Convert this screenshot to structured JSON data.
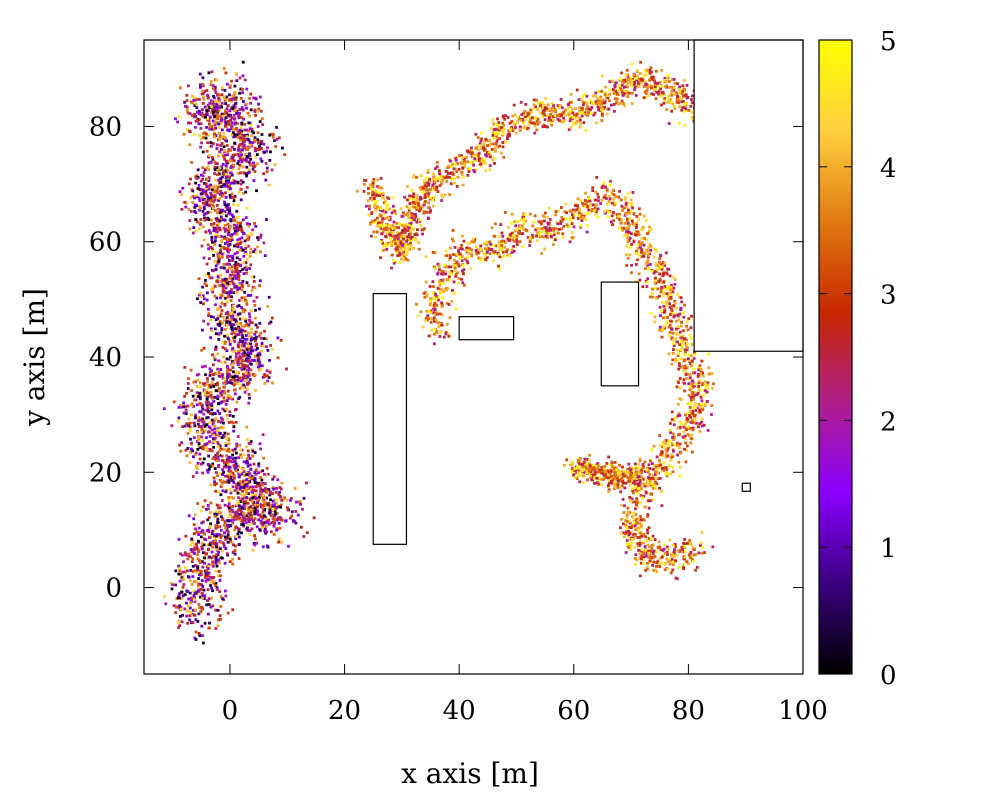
{
  "chart_data": {
    "type": "scatter",
    "title": "",
    "xlabel": "x axis [m]",
    "ylabel": "y axis [m]",
    "xlim": [
      -15,
      100
    ],
    "ylim": [
      -15,
      95
    ],
    "xticks": [
      0,
      20,
      40,
      60,
      80,
      100
    ],
    "yticks": [
      0,
      20,
      40,
      60,
      80
    ],
    "colorbar": {
      "min": 0,
      "max": 5,
      "ticks": [
        0,
        1,
        2,
        3,
        4,
        5
      ],
      "palette": [
        "#000000",
        "#3a0080",
        "#8a00ff",
        "#b0208a",
        "#c82800",
        "#e07a10",
        "#ffd040",
        "#ffff00"
      ]
    },
    "obstacles": [
      {
        "name": "obstacle-1",
        "x0": 25,
        "x1": 30.8,
        "y0": 7.5,
        "y1": 51
      },
      {
        "name": "obstacle-2",
        "x0": 40,
        "x1": 49.5,
        "y0": 43,
        "y1": 47
      },
      {
        "name": "obstacle-3",
        "x0": 64.8,
        "x1": 71.3,
        "y0": 35,
        "y1": 53
      },
      {
        "name": "obstacle-4",
        "x0": 81,
        "x1": 100,
        "y0": 41,
        "y1": 95
      },
      {
        "name": "obstacle-5",
        "x0": 89.4,
        "x1": 90.8,
        "y0": 16.7,
        "y1": 18.1
      }
    ],
    "clusters": [
      {
        "name": "left-column",
        "value_range": [
          0,
          4.5
        ],
        "count": 3200,
        "path": [
          [
            -6,
            -5
          ],
          [
            -5,
            5
          ],
          [
            -2,
            10
          ],
          [
            3,
            14
          ],
          [
            8,
            12
          ],
          [
            2,
            20
          ],
          [
            -3,
            24
          ],
          [
            -5,
            30
          ],
          [
            -1,
            36
          ],
          [
            4,
            40
          ],
          [
            0,
            47
          ],
          [
            0,
            55
          ],
          [
            1,
            62
          ],
          [
            -4,
            66
          ],
          [
            -1,
            72
          ],
          [
            4,
            76
          ],
          [
            0,
            80
          ],
          [
            -5,
            82
          ],
          [
            2,
            86
          ]
        ],
        "spread": 4.2
      },
      {
        "name": "top-band",
        "value_range": [
          2,
          5
        ],
        "count": 1300,
        "path": [
          [
            25,
            70
          ],
          [
            27,
            63
          ],
          [
            30,
            58
          ],
          [
            33,
            68
          ],
          [
            38,
            72
          ],
          [
            44,
            75
          ],
          [
            48,
            80
          ],
          [
            53,
            82
          ],
          [
            60,
            82
          ],
          [
            65,
            84
          ],
          [
            68,
            87
          ],
          [
            73,
            88
          ],
          [
            77,
            86
          ],
          [
            81,
            82
          ]
        ],
        "spread": 2.2
      },
      {
        "name": "middle-band",
        "value_range": [
          2,
          5
        ],
        "count": 1700,
        "path": [
          [
            36,
            44
          ],
          [
            36,
            50
          ],
          [
            38,
            55
          ],
          [
            42,
            60
          ],
          [
            47,
            58
          ],
          [
            50,
            62
          ],
          [
            56,
            62
          ],
          [
            61,
            65
          ],
          [
            66,
            68
          ],
          [
            70,
            64
          ],
          [
            72,
            58
          ],
          [
            76,
            52
          ],
          [
            78,
            45
          ],
          [
            80,
            38
          ],
          [
            82,
            34
          ],
          [
            80,
            28
          ],
          [
            77,
            24
          ],
          [
            74,
            20
          ],
          [
            71,
            15
          ],
          [
            70,
            10
          ],
          [
            73,
            5
          ],
          [
            78,
            5
          ],
          [
            82,
            7
          ]
        ],
        "spread": 2.4
      },
      {
        "name": "lower-spur",
        "value_range": [
          2,
          5
        ],
        "count": 350,
        "path": [
          [
            60,
            21
          ],
          [
            64,
            20
          ],
          [
            68,
            19
          ],
          [
            72,
            20
          ]
        ],
        "spread": 1.8
      }
    ]
  }
}
